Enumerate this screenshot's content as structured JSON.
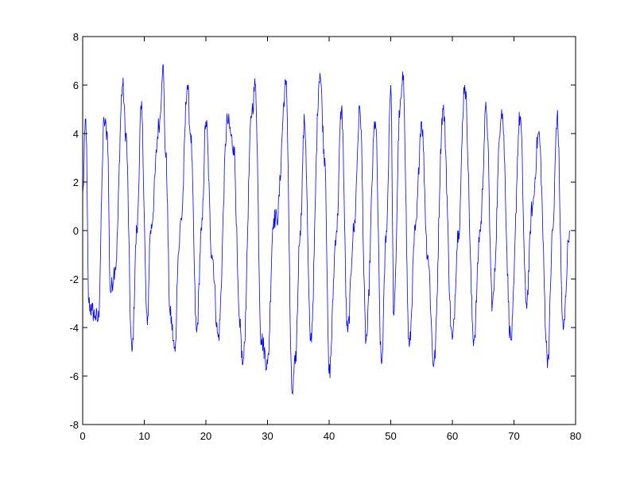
{
  "chart_data": {
    "type": "line",
    "title": "",
    "xlabel": "",
    "ylabel": "",
    "xlim": [
      0,
      80
    ],
    "ylim": [
      -8,
      8
    ],
    "xticks": [
      "0",
      "10",
      "20",
      "30",
      "40",
      "50",
      "60",
      "70",
      "80"
    ],
    "yticks": [
      "-8",
      "-6",
      "-4",
      "-2",
      "0",
      "2",
      "4",
      "6",
      "8"
    ],
    "grid": false,
    "legend": "none",
    "line_color": "#0000ff",
    "series": [
      {
        "x": [
          0,
          0.5,
          1,
          1.5,
          2,
          2.5,
          3.5,
          4,
          4.5,
          5.3,
          6.5,
          7,
          8,
          8.8,
          9.5,
          10.5,
          11,
          12.5,
          13,
          13.5,
          14.2,
          15,
          15.5,
          16,
          17,
          17.5,
          18.5,
          19.3,
          20,
          21,
          22,
          23.5,
          24.5,
          25.5,
          26,
          27.5,
          28,
          29,
          30,
          31,
          31.5,
          33,
          34,
          34.5,
          35.3,
          36,
          37,
          38.5,
          39.3,
          40,
          41.2,
          42,
          43,
          44,
          45,
          46,
          47.5,
          48.5,
          49.3,
          50,
          50.5,
          51.5,
          52,
          53,
          54,
          55,
          56,
          57,
          58.5,
          60,
          61,
          62,
          63.5,
          64.5,
          65.5,
          66.5,
          68,
          69.5,
          71,
          72,
          73,
          74,
          75.5,
          76.3,
          77,
          78,
          79
        ],
        "y": [
          1.5,
          4.6,
          -3,
          -3.3,
          -3.5,
          -3.7,
          4.5,
          4,
          -2.5,
          -1.5,
          6,
          4,
          -5,
          0,
          5,
          -3.9,
          0,
          4.5,
          6.8,
          3,
          -3.5,
          -5,
          -1,
          0.5,
          6,
          4,
          -4.2,
          0,
          4.5,
          -1,
          -4.4,
          4.5,
          3.5,
          -4,
          -5.5,
          5,
          6,
          -4.5,
          -5.5,
          0.5,
          0.5,
          6,
          -6.7,
          -5.5,
          0,
          4.5,
          -4.5,
          6.5,
          3,
          -5.9,
          0,
          5,
          -4.2,
          0,
          5,
          -4.5,
          4.5,
          -5.5,
          0,
          6,
          -3.5,
          5,
          6.2,
          -4.8,
          0,
          4.5,
          -1,
          -5.5,
          5,
          -4.5,
          0,
          6,
          -4.5,
          0,
          5,
          -3,
          5,
          -4.5,
          4.7,
          -3,
          1,
          4,
          -5.3,
          0,
          4.7,
          -4.1,
          0
        ]
      }
    ]
  }
}
